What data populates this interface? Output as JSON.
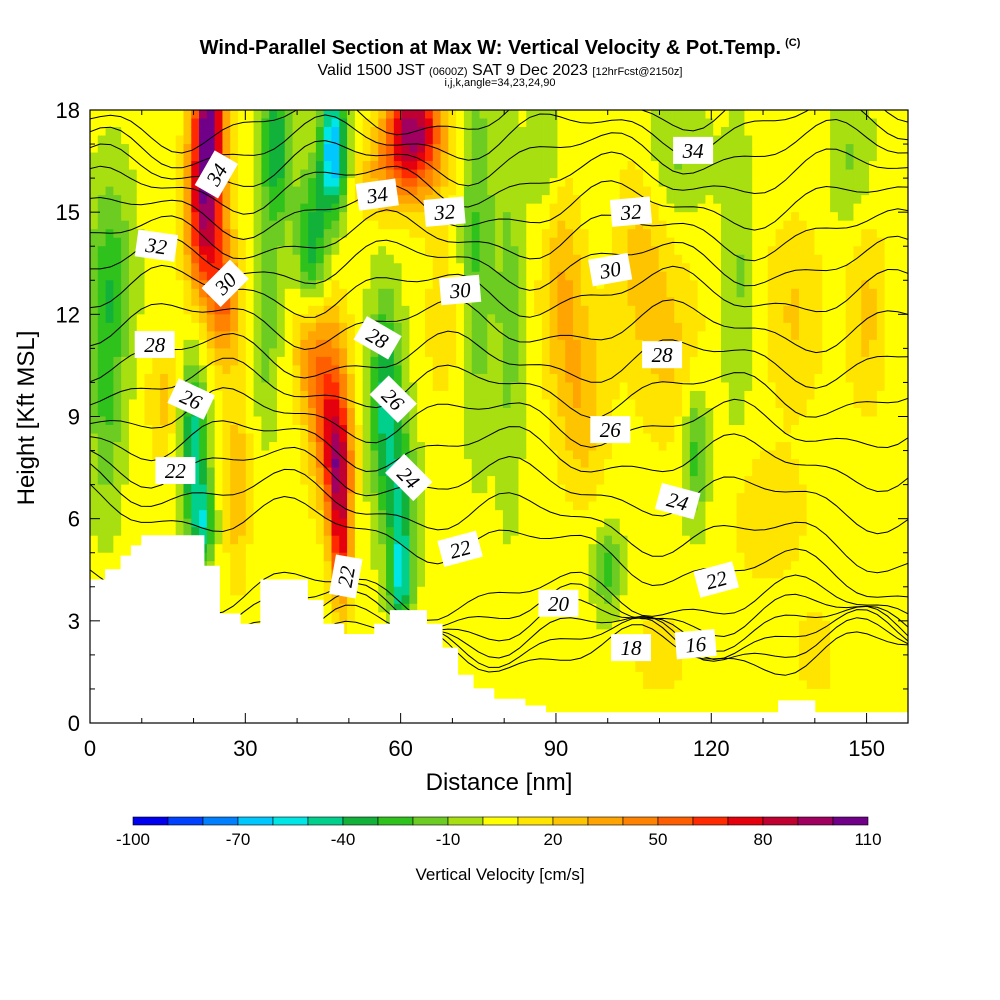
{
  "header": {
    "title": "Wind-Parallel Section at Max W: Vertical Velocity & Pot.Temp.",
    "copyright": "(C)",
    "subtitle_a": "Valid 1500 JST",
    "subtitle_b": "(0600Z)",
    "subtitle_c": "SAT 9 Dec 2023",
    "subtitle_d": "[12hrFcst@2150z]",
    "params": "i,j,k,angle=34,23,24,90"
  },
  "chart_data": {
    "type": "heatmap",
    "xlabel": "Distance [nm]",
    "ylabel": "Height [Kft MSL]",
    "xlim": [
      0,
      158
    ],
    "ylim": [
      0,
      18
    ],
    "x_ticks": [
      0,
      30,
      60,
      90,
      120,
      150
    ],
    "y_ticks": [
      0,
      3,
      6,
      9,
      12,
      15,
      18
    ],
    "colorbar": {
      "title": "Vertical Velocity [cm/s]",
      "levels": [
        -100,
        -90,
        -80,
        -70,
        -60,
        -50,
        -40,
        -30,
        -20,
        -10,
        0,
        10,
        20,
        30,
        40,
        50,
        60,
        70,
        80,
        90,
        100,
        110
      ],
      "tick_labels": [
        "-100",
        "-70",
        "-40",
        "-10",
        "20",
        "50",
        "80",
        "110"
      ],
      "tick_values": [
        -100,
        -70,
        -40,
        -10,
        20,
        50,
        80,
        110
      ],
      "colors": [
        "#0000ee",
        "#0040ff",
        "#0080ff",
        "#00c8ff",
        "#00e5e5",
        "#00d08c",
        "#12b23a",
        "#2fc21c",
        "#6ccc22",
        "#a8df10",
        "#ffff00",
        "#ffe400",
        "#ffc400",
        "#ffa400",
        "#ff8200",
        "#ff5e00",
        "#ff2a00",
        "#e4000c",
        "#c00030",
        "#a00060",
        "#700088"
      ]
    },
    "terrain_profile": [
      [
        0,
        4.2
      ],
      [
        3,
        4.2
      ],
      [
        3,
        4.5
      ],
      [
        6,
        4.5
      ],
      [
        6,
        4.9
      ],
      [
        8,
        4.9
      ],
      [
        8,
        5.2
      ],
      [
        10,
        5.2
      ],
      [
        10,
        5.5
      ],
      [
        22,
        5.5
      ],
      [
        22,
        4.6
      ],
      [
        25,
        4.6
      ],
      [
        25,
        3.2
      ],
      [
        29,
        3.2
      ],
      [
        29,
        2.9
      ],
      [
        33,
        2.9
      ],
      [
        33,
        4.2
      ],
      [
        42,
        4.2
      ],
      [
        42,
        3.6
      ],
      [
        45,
        3.6
      ],
      [
        45,
        2.9
      ],
      [
        49,
        2.9
      ],
      [
        49,
        2.6
      ],
      [
        55,
        2.6
      ],
      [
        55,
        2.9
      ],
      [
        58,
        2.9
      ],
      [
        58,
        3.3
      ],
      [
        65,
        3.3
      ],
      [
        65,
        2.9
      ],
      [
        68,
        2.9
      ],
      [
        68,
        2.2
      ],
      [
        71,
        2.2
      ],
      [
        71,
        1.4
      ],
      [
        74,
        1.4
      ],
      [
        74,
        1.0
      ],
      [
        78,
        1.0
      ],
      [
        78,
        0.7
      ],
      [
        84,
        0.7
      ],
      [
        84,
        0.5
      ],
      [
        88,
        0.5
      ],
      [
        88,
        0.3
      ],
      [
        133,
        0.3
      ],
      [
        133,
        0.65
      ],
      [
        140,
        0.65
      ],
      [
        140,
        0.3
      ],
      [
        158,
        0.3
      ],
      [
        158,
        0
      ],
      [
        0,
        0
      ]
    ],
    "w_cells": [
      {
        "x": 23,
        "y": 17.8,
        "w": 95,
        "rx": 3,
        "ry": 2.5
      },
      {
        "x": 22,
        "y": 14.8,
        "w": 70,
        "rx": 3.5,
        "ry": 2.5
      },
      {
        "x": 26,
        "y": 12.5,
        "w": 45,
        "rx": 3,
        "ry": 2
      },
      {
        "x": 36,
        "y": 17,
        "w": -40,
        "rx": 3,
        "ry": 2.5
      },
      {
        "x": 34,
        "y": 12,
        "w": -20,
        "rx": 2.5,
        "ry": 3
      },
      {
        "x": 47,
        "y": 16.8,
        "w": -75,
        "rx": 2.5,
        "ry": 1.8
      },
      {
        "x": 43,
        "y": 14,
        "w": -40,
        "rx": 3,
        "ry": 2.2
      },
      {
        "x": 62,
        "y": 17.5,
        "w": 85,
        "rx": 5,
        "ry": 1.4
      },
      {
        "x": 58,
        "y": 16,
        "w": 30,
        "rx": 6,
        "ry": 1.3
      },
      {
        "x": 46,
        "y": 9.5,
        "w": 55,
        "rx": 4,
        "ry": 2.8
      },
      {
        "x": 48,
        "y": 7.5,
        "w": 65,
        "rx": 2.5,
        "ry": 1.8
      },
      {
        "x": 48.5,
        "y": 5.0,
        "w": 60,
        "rx": 2,
        "ry": 1.8
      },
      {
        "x": 42,
        "y": 11,
        "w": 25,
        "rx": 3,
        "ry": 1.6
      },
      {
        "x": 57,
        "y": 9.5,
        "w": -45,
        "rx": 3,
        "ry": 3
      },
      {
        "x": 60,
        "y": 6.5,
        "w": -35,
        "rx": 3,
        "ry": 2.5
      },
      {
        "x": 60,
        "y": 4.2,
        "w": -45,
        "rx": 2,
        "ry": 1.4
      },
      {
        "x": 20,
        "y": 8.0,
        "w": -50,
        "rx": 2.5,
        "ry": 2.5
      },
      {
        "x": 22,
        "y": 5.8,
        "w": -40,
        "rx": 2,
        "ry": 1.3
      },
      {
        "x": 14,
        "y": 9.5,
        "w": 20,
        "rx": 3,
        "ry": 1.8
      },
      {
        "x": 4,
        "y": 13,
        "w": -30,
        "rx": 4,
        "ry": 3
      },
      {
        "x": 3,
        "y": 9,
        "w": -20,
        "rx": 3,
        "ry": 3
      },
      {
        "x": 28.5,
        "y": 7.0,
        "w": 25,
        "rx": 2.5,
        "ry": 3
      },
      {
        "x": 66,
        "y": 16.5,
        "w": 20,
        "rx": 4,
        "ry": 2
      },
      {
        "x": 68,
        "y": 11.5,
        "w": 12,
        "rx": 4,
        "ry": 2.5
      },
      {
        "x": 75,
        "y": 14,
        "w": -25,
        "rx": 3,
        "ry": 5
      },
      {
        "x": 81,
        "y": 12,
        "w": -18,
        "rx": 2.5,
        "ry": 5
      },
      {
        "x": 91,
        "y": 13,
        "w": 25,
        "rx": 4,
        "ry": 3
      },
      {
        "x": 95,
        "y": 9.5,
        "w": 25,
        "rx": 5,
        "ry": 3
      },
      {
        "x": 88,
        "y": 16.5,
        "w": -15,
        "rx": 3,
        "ry": 1.8
      },
      {
        "x": 100,
        "y": 4.5,
        "w": -30,
        "rx": 2.5,
        "ry": 1.2
      },
      {
        "x": 106,
        "y": 14,
        "w": 18,
        "rx": 5,
        "ry": 3
      },
      {
        "x": 113,
        "y": 16.5,
        "w": -15,
        "rx": 6,
        "ry": 1.8
      },
      {
        "x": 112,
        "y": 11,
        "w": 18,
        "rx": 7,
        "ry": 3
      },
      {
        "x": 117,
        "y": 8,
        "w": -30,
        "rx": 2.5,
        "ry": 2
      },
      {
        "x": 125,
        "y": 13,
        "w": -15,
        "rx": 3,
        "ry": 4
      },
      {
        "x": 136,
        "y": 12,
        "w": 18,
        "rx": 6,
        "ry": 3
      },
      {
        "x": 147,
        "y": 16.5,
        "w": -15,
        "rx": 4,
        "ry": 2
      },
      {
        "x": 150,
        "y": 12,
        "w": 20,
        "rx": 4,
        "ry": 3
      },
      {
        "x": 131,
        "y": 6,
        "w": 15,
        "rx": 8,
        "ry": 2
      },
      {
        "x": 110,
        "y": 2,
        "w": 12,
        "rx": 6,
        "ry": 1.5
      },
      {
        "x": 140,
        "y": 2,
        "w": 12,
        "rx": 5,
        "ry": 1.5
      }
    ],
    "theta_contours": [
      {
        "level": 16,
        "y_left": 2.2,
        "y_right": 2.05
      },
      {
        "level": 17,
        "y_left": 2.5,
        "y_right": 2.3
      },
      {
        "level": 18,
        "y_left": 2.8,
        "y_right": 2.55
      },
      {
        "level": 19,
        "y_left": 3.2,
        "y_right": 2.8
      },
      {
        "level": 20,
        "y_left": 3.6,
        "y_right": 3.1
      },
      {
        "level": 21,
        "y_left": 4.0,
        "y_right": 3.5
      },
      {
        "level": 22,
        "y_left": 6.5,
        "y_right": 4.0
      },
      {
        "level": 23,
        "y_left": 7.2,
        "y_right": 5.0
      },
      {
        "level": 24,
        "y_left": 7.8,
        "y_right": 6.3
      },
      {
        "level": 25,
        "y_left": 8.5,
        "y_right": 7.5
      },
      {
        "level": 26,
        "y_left": 9.2,
        "y_right": 8.6
      },
      {
        "level": 27,
        "y_left": 10.0,
        "y_right": 9.6
      },
      {
        "level": 28,
        "y_left": 10.8,
        "y_right": 10.6
      },
      {
        "level": 29,
        "y_left": 11.8,
        "y_right": 11.6
      },
      {
        "level": 30,
        "y_left": 12.7,
        "y_right": 12.6
      },
      {
        "level": 31,
        "y_left": 13.5,
        "y_right": 13.5
      },
      {
        "level": 32,
        "y_left": 14.2,
        "y_right": 14.4
      },
      {
        "level": 33,
        "y_left": 14.9,
        "y_right": 15.3
      },
      {
        "level": 34,
        "y_left": 15.6,
        "y_right": 16.2
      },
      {
        "level": 35,
        "y_left": 16.2,
        "y_right": 17.0
      },
      {
        "level": 36,
        "y_left": 16.8,
        "y_right": 17.7
      },
      {
        "level": 37,
        "y_left": 17.4,
        "y_right": 18.4
      }
    ],
    "contour_labels": [
      {
        "text": "34",
        "x": 24.5,
        "y": 16.1,
        "angle": -60
      },
      {
        "text": "34",
        "x": 55.5,
        "y": 15.5,
        "angle": -8
      },
      {
        "text": "34",
        "x": 116.5,
        "y": 16.8,
        "angle": 0
      },
      {
        "text": "32",
        "x": 12.8,
        "y": 14.0,
        "angle": 8
      },
      {
        "text": "32",
        "x": 68.5,
        "y": 15.0,
        "angle": -5
      },
      {
        "text": "32",
        "x": 104.5,
        "y": 15.0,
        "angle": -5
      },
      {
        "text": "30",
        "x": 26.2,
        "y": 12.9,
        "angle": -45
      },
      {
        "text": "30",
        "x": 71.5,
        "y": 12.7,
        "angle": -5
      },
      {
        "text": "30",
        "x": 100.5,
        "y": 13.3,
        "angle": -10
      },
      {
        "text": "28",
        "x": 12.5,
        "y": 11.1,
        "angle": 0
      },
      {
        "text": "28",
        "x": 55.5,
        "y": 11.3,
        "angle": 30
      },
      {
        "text": "28",
        "x": 110.5,
        "y": 10.8,
        "angle": 0
      },
      {
        "text": "26",
        "x": 19.5,
        "y": 9.5,
        "angle": 25
      },
      {
        "text": "26",
        "x": 58.5,
        "y": 9.5,
        "angle": 45
      },
      {
        "text": "26",
        "x": 100.5,
        "y": 8.6,
        "angle": 0
      },
      {
        "text": "22",
        "x": 16.5,
        "y": 7.4,
        "angle": 0
      },
      {
        "text": "24",
        "x": 61.5,
        "y": 7.2,
        "angle": 45
      },
      {
        "text": "24",
        "x": 113.5,
        "y": 6.5,
        "angle": 15
      },
      {
        "text": "22",
        "x": 71.5,
        "y": 5.1,
        "angle": -15
      },
      {
        "text": "22",
        "x": 49.5,
        "y": 4.3,
        "angle": -80
      },
      {
        "text": "22",
        "x": 121,
        "y": 4.2,
        "angle": -15
      },
      {
        "text": "20",
        "x": 90.5,
        "y": 3.5,
        "angle": 0
      },
      {
        "text": "18",
        "x": 104.5,
        "y": 2.2,
        "angle": 0
      },
      {
        "text": "16",
        "x": 117,
        "y": 2.3,
        "angle": -5
      }
    ]
  }
}
